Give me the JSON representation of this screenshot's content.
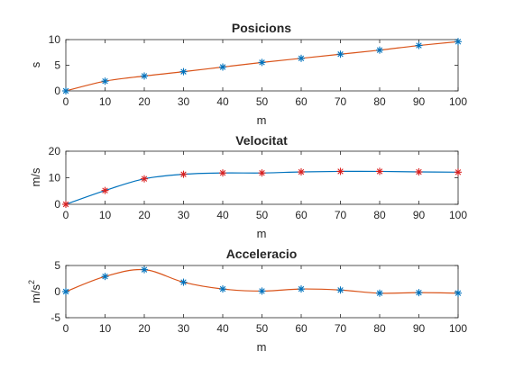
{
  "chart_data": [
    {
      "type": "line",
      "title": "Posicions",
      "xlabel": "m",
      "ylabel": "s",
      "xlim": [
        0,
        100
      ],
      "ylim": [
        0,
        10
      ],
      "xticks": [
        0,
        10,
        20,
        30,
        40,
        50,
        60,
        70,
        80,
        90,
        100
      ],
      "yticks": [
        0,
        5,
        10
      ],
      "grid": false,
      "x": [
        0,
        10,
        20,
        30,
        40,
        50,
        60,
        70,
        80,
        90,
        100
      ],
      "series": [
        {
          "style": "line",
          "color": "#d95319",
          "values": [
            0,
            1.9,
            2.9,
            3.75,
            4.65,
            5.55,
            6.35,
            7.15,
            7.95,
            8.85,
            9.6
          ]
        },
        {
          "style": "markers",
          "marker": "asterisk",
          "color": "#0072bd",
          "values": [
            0,
            1.9,
            2.9,
            3.75,
            4.65,
            5.55,
            6.35,
            7.15,
            7.95,
            8.85,
            9.6
          ]
        }
      ]
    },
    {
      "type": "line",
      "title": "Velocitat",
      "xlabel": "m",
      "ylabel": "m/s",
      "xlim": [
        0,
        100
      ],
      "ylim": [
        0,
        20
      ],
      "xticks": [
        0,
        10,
        20,
        30,
        40,
        50,
        60,
        70,
        80,
        90,
        100
      ],
      "yticks": [
        0,
        10,
        20
      ],
      "grid": false,
      "x": [
        0,
        10,
        20,
        30,
        40,
        50,
        60,
        70,
        80,
        90,
        100
      ],
      "series": [
        {
          "style": "line",
          "color": "#0072bd",
          "values": [
            0,
            5.2,
            9.6,
            11.3,
            11.8,
            11.8,
            12.2,
            12.4,
            12.4,
            12.2,
            12.1
          ]
        },
        {
          "style": "markers",
          "marker": "asterisk",
          "color": "#d92020",
          "values": [
            0,
            5.2,
            9.6,
            11.3,
            11.8,
            11.8,
            12.2,
            12.4,
            12.4,
            12.2,
            12.1
          ]
        }
      ]
    },
    {
      "type": "line",
      "title": "Acceleracio",
      "xlabel": "m",
      "ylabel": "m/s",
      "ylabel_sup": "2",
      "xlim": [
        0,
        100
      ],
      "ylim": [
        -5,
        5
      ],
      "xticks": [
        0,
        10,
        20,
        30,
        40,
        50,
        60,
        70,
        80,
        90,
        100
      ],
      "yticks": [
        -5,
        0,
        5
      ],
      "grid": false,
      "x": [
        0,
        10,
        20,
        30,
        40,
        50,
        60,
        70,
        80,
        90,
        100
      ],
      "series": [
        {
          "style": "line",
          "color": "#d95319",
          "values": [
            0,
            2.9,
            4.2,
            1.8,
            0.5,
            0.1,
            0.5,
            0.3,
            -0.3,
            -0.2,
            -0.3
          ]
        },
        {
          "style": "markers",
          "marker": "asterisk",
          "color": "#0072bd",
          "values": [
            0,
            2.9,
            4.2,
            1.8,
            0.5,
            0.1,
            0.5,
            0.3,
            -0.3,
            -0.2,
            -0.3
          ]
        }
      ]
    }
  ]
}
